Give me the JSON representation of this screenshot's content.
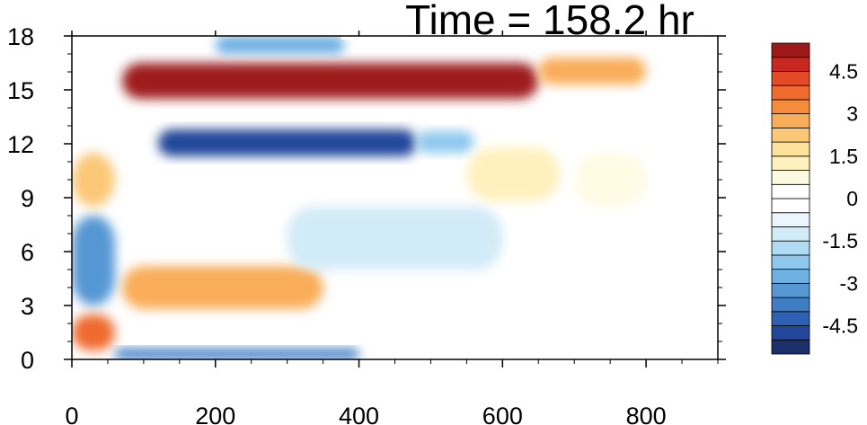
{
  "title": "Time = 158.2 hr",
  "chart_data": {
    "type": "heatmap",
    "title": "Time = 158.2 hr",
    "xlabel": "",
    "ylabel": "",
    "xlim": [
      0,
      900
    ],
    "ylim": [
      0,
      18
    ],
    "x_ticks": [
      0,
      200,
      400,
      600,
      800
    ],
    "y_ticks": [
      0,
      3,
      6,
      9,
      12,
      15,
      18
    ],
    "colorbar": {
      "levels": [
        -5.5,
        -5,
        -4.5,
        -4,
        -3.5,
        -3,
        -2.5,
        -2,
        -1.5,
        -1,
        -0.5,
        0,
        0.5,
        1,
        1.5,
        2,
        2.5,
        3,
        3.5,
        4,
        4.5,
        5,
        5.5
      ],
      "tick_labels": [
        {
          "value": 4.5,
          "label": "4.5"
        },
        {
          "value": 3,
          "label": "3"
        },
        {
          "value": 1.5,
          "label": "1.5"
        },
        {
          "value": 0,
          "label": "0"
        },
        {
          "value": -1.5,
          "label": "-1.5"
        },
        {
          "value": -3,
          "label": "-3"
        },
        {
          "value": -4.5,
          "label": "-4.5"
        }
      ],
      "colors": [
        "#1b2f6b",
        "#22479a",
        "#2e61b4",
        "#3e7cc4",
        "#5497d3",
        "#6fb0e2",
        "#8ec8ee",
        "#b0dbf4",
        "#d2ebf8",
        "#ebf6fc",
        "#ffffff",
        "#ffffff",
        "#fffbe3",
        "#fff1bd",
        "#fde29a",
        "#fbc877",
        "#f9ad58",
        "#f58c3c",
        "#ef6b2e",
        "#e34a26",
        "#c8281f",
        "#9e1a1a"
      ],
      "location": "right"
    },
    "features": [
      {
        "x": [
          70,
          650
        ],
        "y": [
          14.5,
          16.5
        ],
        "value": 5.5
      },
      {
        "x": [
          650,
          800
        ],
        "y": [
          15.3,
          16.8
        ],
        "value": 2.8
      },
      {
        "x": [
          120,
          480
        ],
        "y": [
          11.3,
          12.8
        ],
        "value": -4.6
      },
      {
        "x": [
          480,
          560
        ],
        "y": [
          11.5,
          12.7
        ],
        "value": -2.5
      },
      {
        "x": [
          550,
          680
        ],
        "y": [
          8.8,
          11.8
        ],
        "value": 1.4
      },
      {
        "x": [
          700,
          800
        ],
        "y": [
          8.5,
          11.5
        ],
        "value": 0.6
      },
      {
        "x": [
          70,
          350
        ],
        "y": [
          2.8,
          5.2
        ],
        "value": 2.5
      },
      {
        "x": [
          0,
          60
        ],
        "y": [
          3,
          8
        ],
        "value": -3.5
      },
      {
        "x": [
          0,
          60
        ],
        "y": [
          8.5,
          11.5
        ],
        "value": 2.0
      },
      {
        "x": [
          0,
          60
        ],
        "y": [
          0.5,
          2.5
        ],
        "value": 3.5
      },
      {
        "x": [
          60,
          400
        ],
        "y": [
          0,
          0.6
        ],
        "value": -4.0
      },
      {
        "x": [
          300,
          600
        ],
        "y": [
          5,
          8.5
        ],
        "value": -1.2
      },
      {
        "x": [
          200,
          380
        ],
        "y": [
          17,
          18
        ],
        "value": -3.0
      }
    ]
  }
}
